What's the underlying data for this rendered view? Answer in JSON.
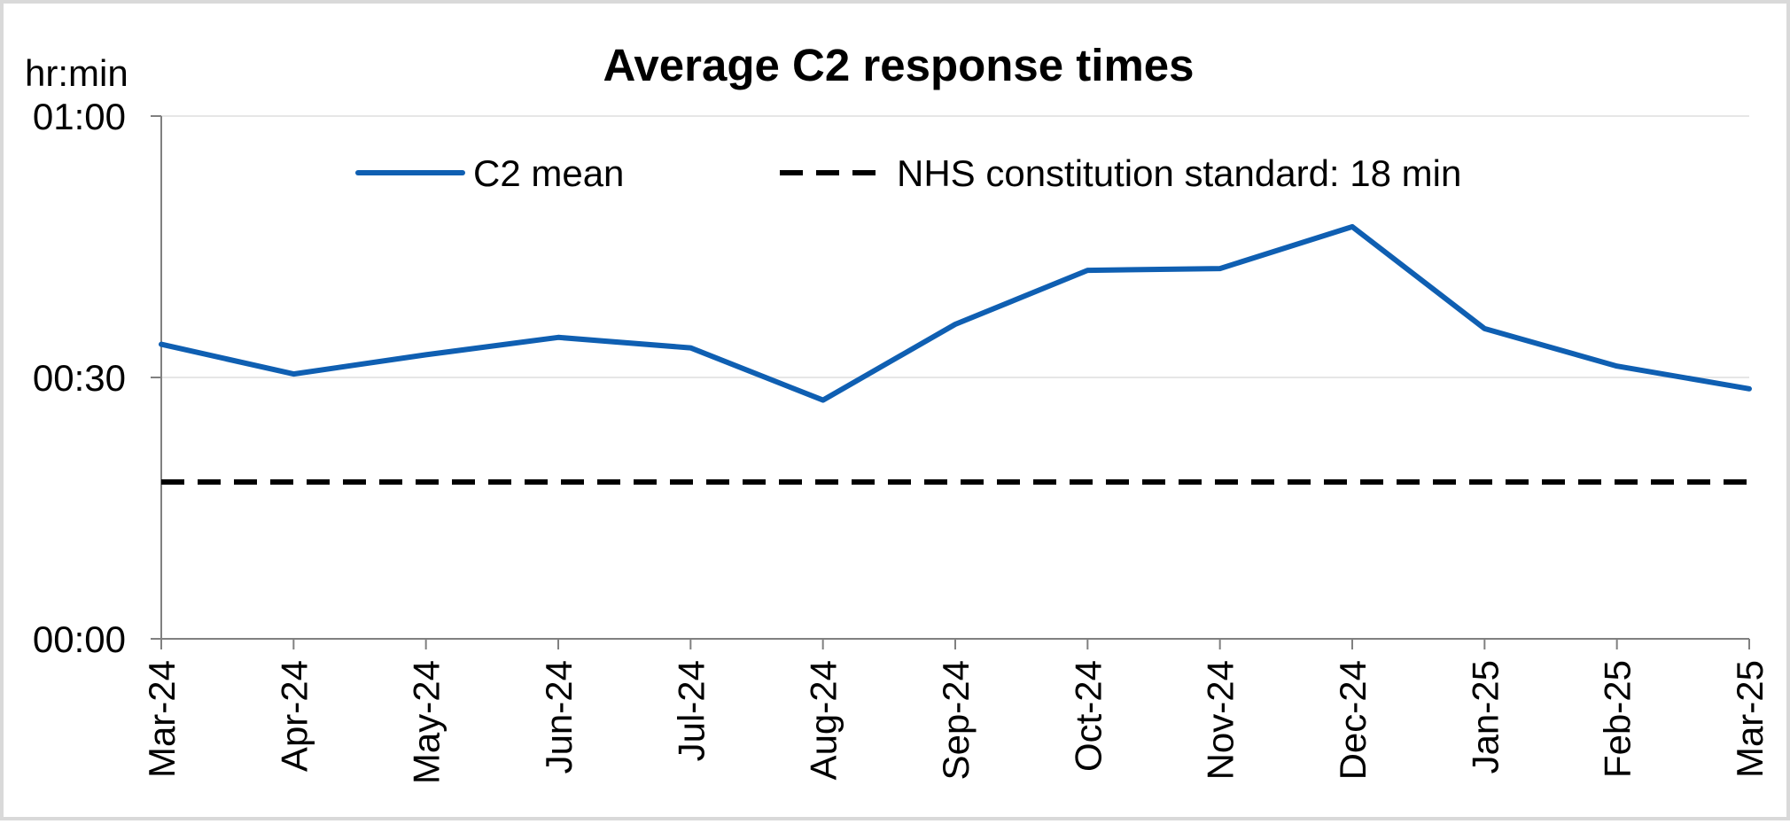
{
  "chart_data": {
    "type": "line",
    "title": "Average C2 response times",
    "y_unit_label": "hr:min",
    "xlabel": "",
    "ylabel": "",
    "categories": [
      "Mar-24",
      "Apr-24",
      "May-24",
      "Jun-24",
      "Jul-24",
      "Aug-24",
      "Sep-24",
      "Oct-24",
      "Nov-24",
      "Dec-24",
      "Jan-25",
      "Feb-25",
      "Mar-25"
    ],
    "y_ticks": [
      {
        "minutes": 0,
        "label": "00:00"
      },
      {
        "minutes": 30,
        "label": "00:30"
      },
      {
        "minutes": 60,
        "label": "01:00"
      }
    ],
    "ylim_minutes": [
      0,
      60
    ],
    "gridlines": true,
    "legend_position": "top",
    "series": [
      {
        "name": "C2 mean",
        "color": "#0f5fb2",
        "style": "solid",
        "values_minutes": [
          33.8,
          30.4,
          32.6,
          34.6,
          33.4,
          27.4,
          36.1,
          42.3,
          42.5,
          47.3,
          35.6,
          31.3,
          28.7
        ]
      },
      {
        "name": "NHS constitution standard: 18 min",
        "color": "#000000",
        "style": "dashed",
        "values_minutes": [
          18,
          18,
          18,
          18,
          18,
          18,
          18,
          18,
          18,
          18,
          18,
          18,
          18
        ]
      }
    ]
  }
}
